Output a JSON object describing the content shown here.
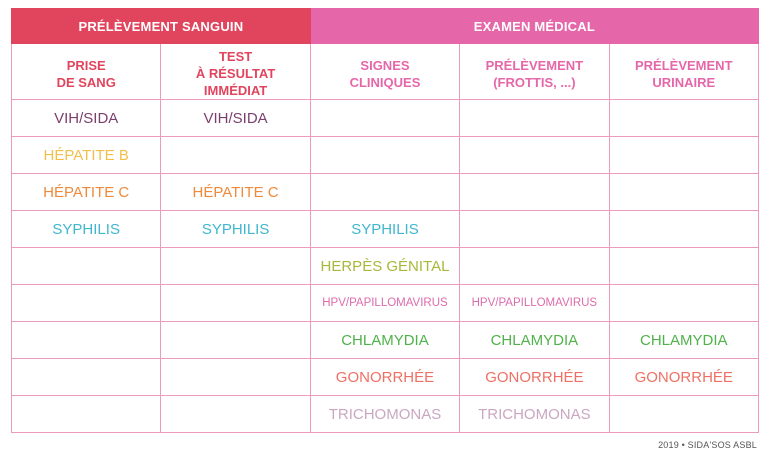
{
  "table": {
    "groups": [
      {
        "label": "PRÉLÈVEMENT SANGUIN",
        "span": 2,
        "color": "#e1455e"
      },
      {
        "label": "EXAMEN MÉDICAL",
        "span": 3,
        "color": "#e667a9"
      }
    ],
    "columns": [
      {
        "line1": "PRISE",
        "line2": "DE SANG"
      },
      {
        "line1": "TEST",
        "line2": "À RÉSULTAT IMMÉDIAT"
      },
      {
        "line1": "SIGNES",
        "line2": "CLINIQUES"
      },
      {
        "line1": "PRÉLÈVEMENT",
        "line2": "(FROTTIS, ...)"
      },
      {
        "line1": "PRÉLÈVEMENT",
        "line2": "URINAIRE"
      }
    ],
    "rows": [
      {
        "color": "#7b3f6e",
        "small": false,
        "cells": [
          "VIH/SIDA",
          "VIH/SIDA",
          "",
          "",
          ""
        ]
      },
      {
        "color": "#f2c04a",
        "small": false,
        "cells": [
          "HÉPATITE B",
          "",
          "",
          "",
          ""
        ]
      },
      {
        "color": "#ee8a3c",
        "small": false,
        "cells": [
          "HÉPATITE C",
          "HÉPATITE C",
          "",
          "",
          ""
        ]
      },
      {
        "color": "#3fb7cf",
        "small": false,
        "cells": [
          "SYPHILIS",
          "SYPHILIS",
          "SYPHILIS",
          "",
          ""
        ]
      },
      {
        "color": "#a7b83a",
        "small": false,
        "cells": [
          "",
          "",
          "HERPÈS GÉNITAL",
          "",
          ""
        ]
      },
      {
        "color": "#dc6cac",
        "small": true,
        "cells": [
          "",
          "",
          "HPV/PAPILLOMAVIRUS",
          "HPV/PAPILLOMAVIRUS",
          ""
        ]
      },
      {
        "color": "#4fb34a",
        "small": false,
        "cells": [
          "",
          "",
          "CHLAMYDIA",
          "CHLAMYDIA",
          "CHLAMYDIA"
        ]
      },
      {
        "color": "#ee7064",
        "small": false,
        "cells": [
          "",
          "",
          "GONORRHÉE",
          "GONORRHÉE",
          "GONORRHÉE"
        ]
      },
      {
        "color": "#c9a7c2",
        "small": false,
        "cells": [
          "",
          "",
          "TRICHOMONAS",
          "TRICHOMONAS",
          ""
        ]
      }
    ]
  },
  "footer": {
    "credit": "2019 • SIDA'SOS ASBL"
  }
}
